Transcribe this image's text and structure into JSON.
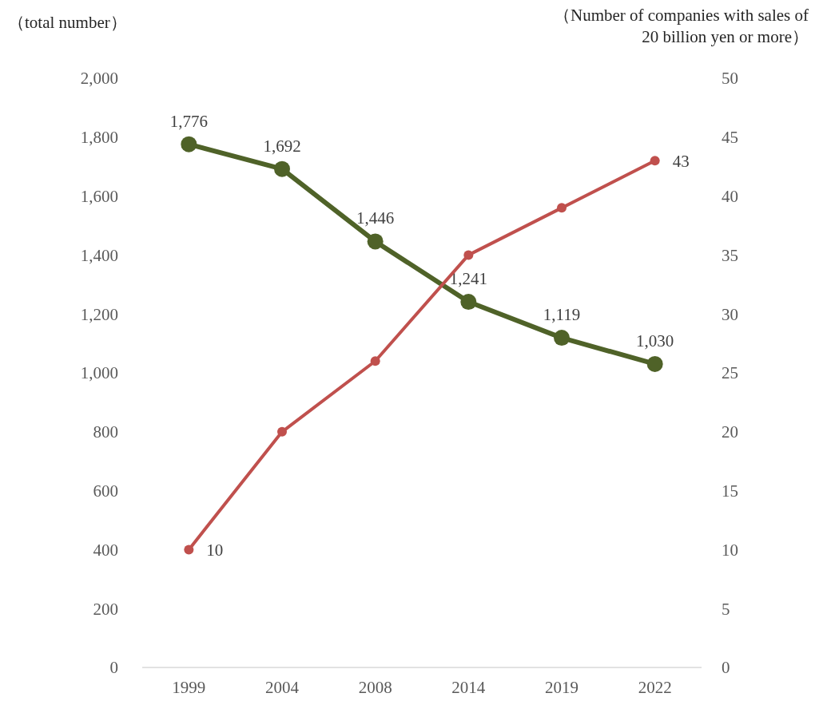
{
  "chart_data": {
    "type": "line",
    "categories": [
      "1999",
      "2004",
      "2008",
      "2014",
      "2019",
      "2022"
    ],
    "ylabel": "（total number）",
    "y2label": "（Number of companies with sales of 20 billion yen or more）",
    "ylim": [
      0,
      2000
    ],
    "yticks": [
      {
        "value": 0,
        "label": "0"
      },
      {
        "value": 200,
        "label": "200"
      },
      {
        "value": 400,
        "label": "400"
      },
      {
        "value": 600,
        "label": "600"
      },
      {
        "value": 800,
        "label": "800"
      },
      {
        "value": 1000,
        "label": "1,000"
      },
      {
        "value": 1200,
        "label": "1,200"
      },
      {
        "value": 1400,
        "label": "1,400"
      },
      {
        "value": 1600,
        "label": "1,600"
      },
      {
        "value": 1800,
        "label": "1,800"
      },
      {
        "value": 2000,
        "label": "2,000"
      }
    ],
    "y2lim": [
      0,
      50
    ],
    "y2ticks": [
      0,
      5,
      10,
      15,
      20,
      25,
      30,
      35,
      40,
      45,
      50
    ],
    "marker": "circle",
    "grid": false,
    "series": [
      {
        "color": "#4f6228",
        "values": [
          1776,
          1692,
          1446,
          1241,
          1119,
          1030
        ],
        "value_labels": [
          "1,776",
          "1,692",
          "1,446",
          "1,241",
          "1,119",
          "1,030"
        ]
      },
      {
        "color": "#c0504d",
        "axis": "y2",
        "values": [
          10,
          20,
          26,
          35,
          39,
          43
        ],
        "value_labels": [
          "10",
          null,
          null,
          null,
          null,
          "43"
        ]
      }
    ]
  }
}
